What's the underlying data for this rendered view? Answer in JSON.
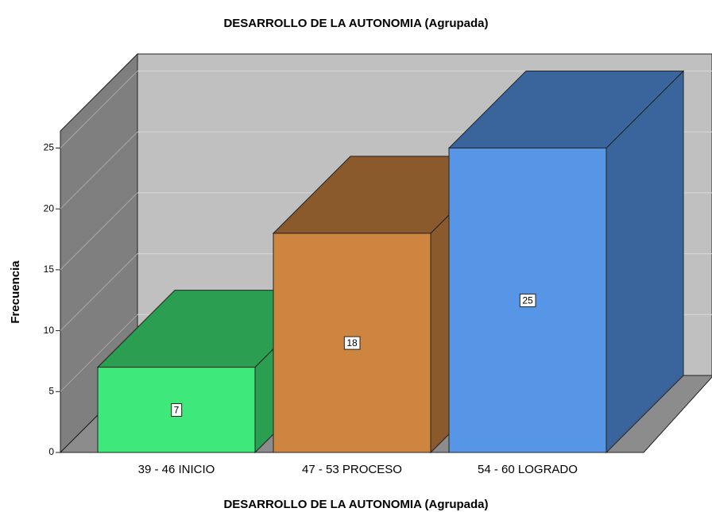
{
  "chart_data": {
    "type": "bar3d",
    "title": "DESARROLLO DE LA AUTONOMIA (Agrupada)",
    "x_label": "DESARROLLO DE LA AUTONOMIA (Agrupada)",
    "y_label": "Frecuencia",
    "categories": [
      "39 - 46 INICIO",
      "47 - 53 PROCESO",
      "54 - 60 LOGRADO"
    ],
    "values": [
      7,
      18,
      25
    ],
    "colors": [
      "#3fe87a",
      "#cd853f",
      "#5796e6"
    ],
    "shade_colors": [
      "#2b9e52",
      "#8a5a2c",
      "#3a659c"
    ],
    "ylim": [
      0,
      26.4
    ],
    "yticks": [
      0,
      5,
      10,
      15,
      20,
      25
    ],
    "grid": true
  }
}
